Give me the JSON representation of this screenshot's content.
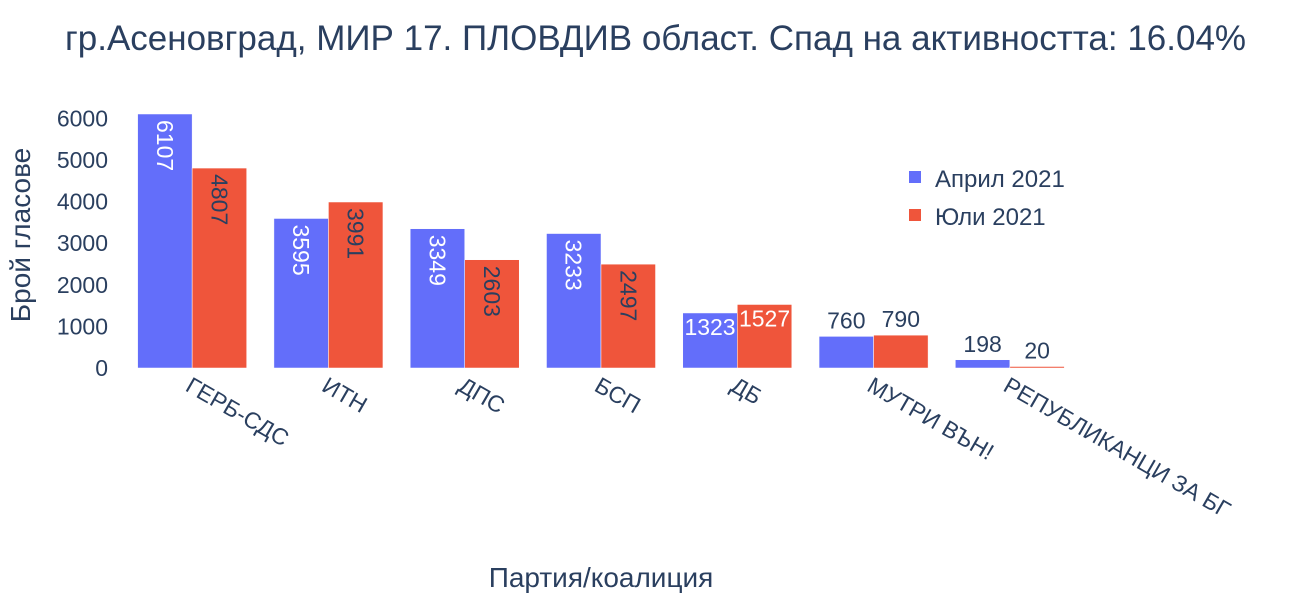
{
  "chart_data": {
    "type": "bar",
    "title": "гр.Асеновград, МИР 17. ПЛОВДИВ област. Спад на активността: 16.04%",
    "xlabel": "Партия/коалиция",
    "ylabel": "Брой гласове",
    "categories": [
      "ГЕРБ-СДС",
      "ИТН",
      "ДПС",
      "БСП",
      "ДБ",
      "МУТРИ ВЪН!",
      "РЕПУБЛИКАНЦИ ЗА БГ"
    ],
    "series": [
      {
        "name": "Април 2021",
        "values": [
          6107,
          3595,
          3349,
          3233,
          1323,
          760,
          198
        ],
        "color": "#636efa"
      },
      {
        "name": "Юли 2021",
        "values": [
          4807,
          3991,
          2603,
          2497,
          1527,
          790,
          20
        ],
        "color": "#ef553b"
      }
    ],
    "yticks": [
      0,
      1000,
      2000,
      3000,
      4000,
      5000,
      6000
    ],
    "ylim": [
      0,
      6107
    ],
    "grid": false,
    "legend_position": "top-right"
  }
}
